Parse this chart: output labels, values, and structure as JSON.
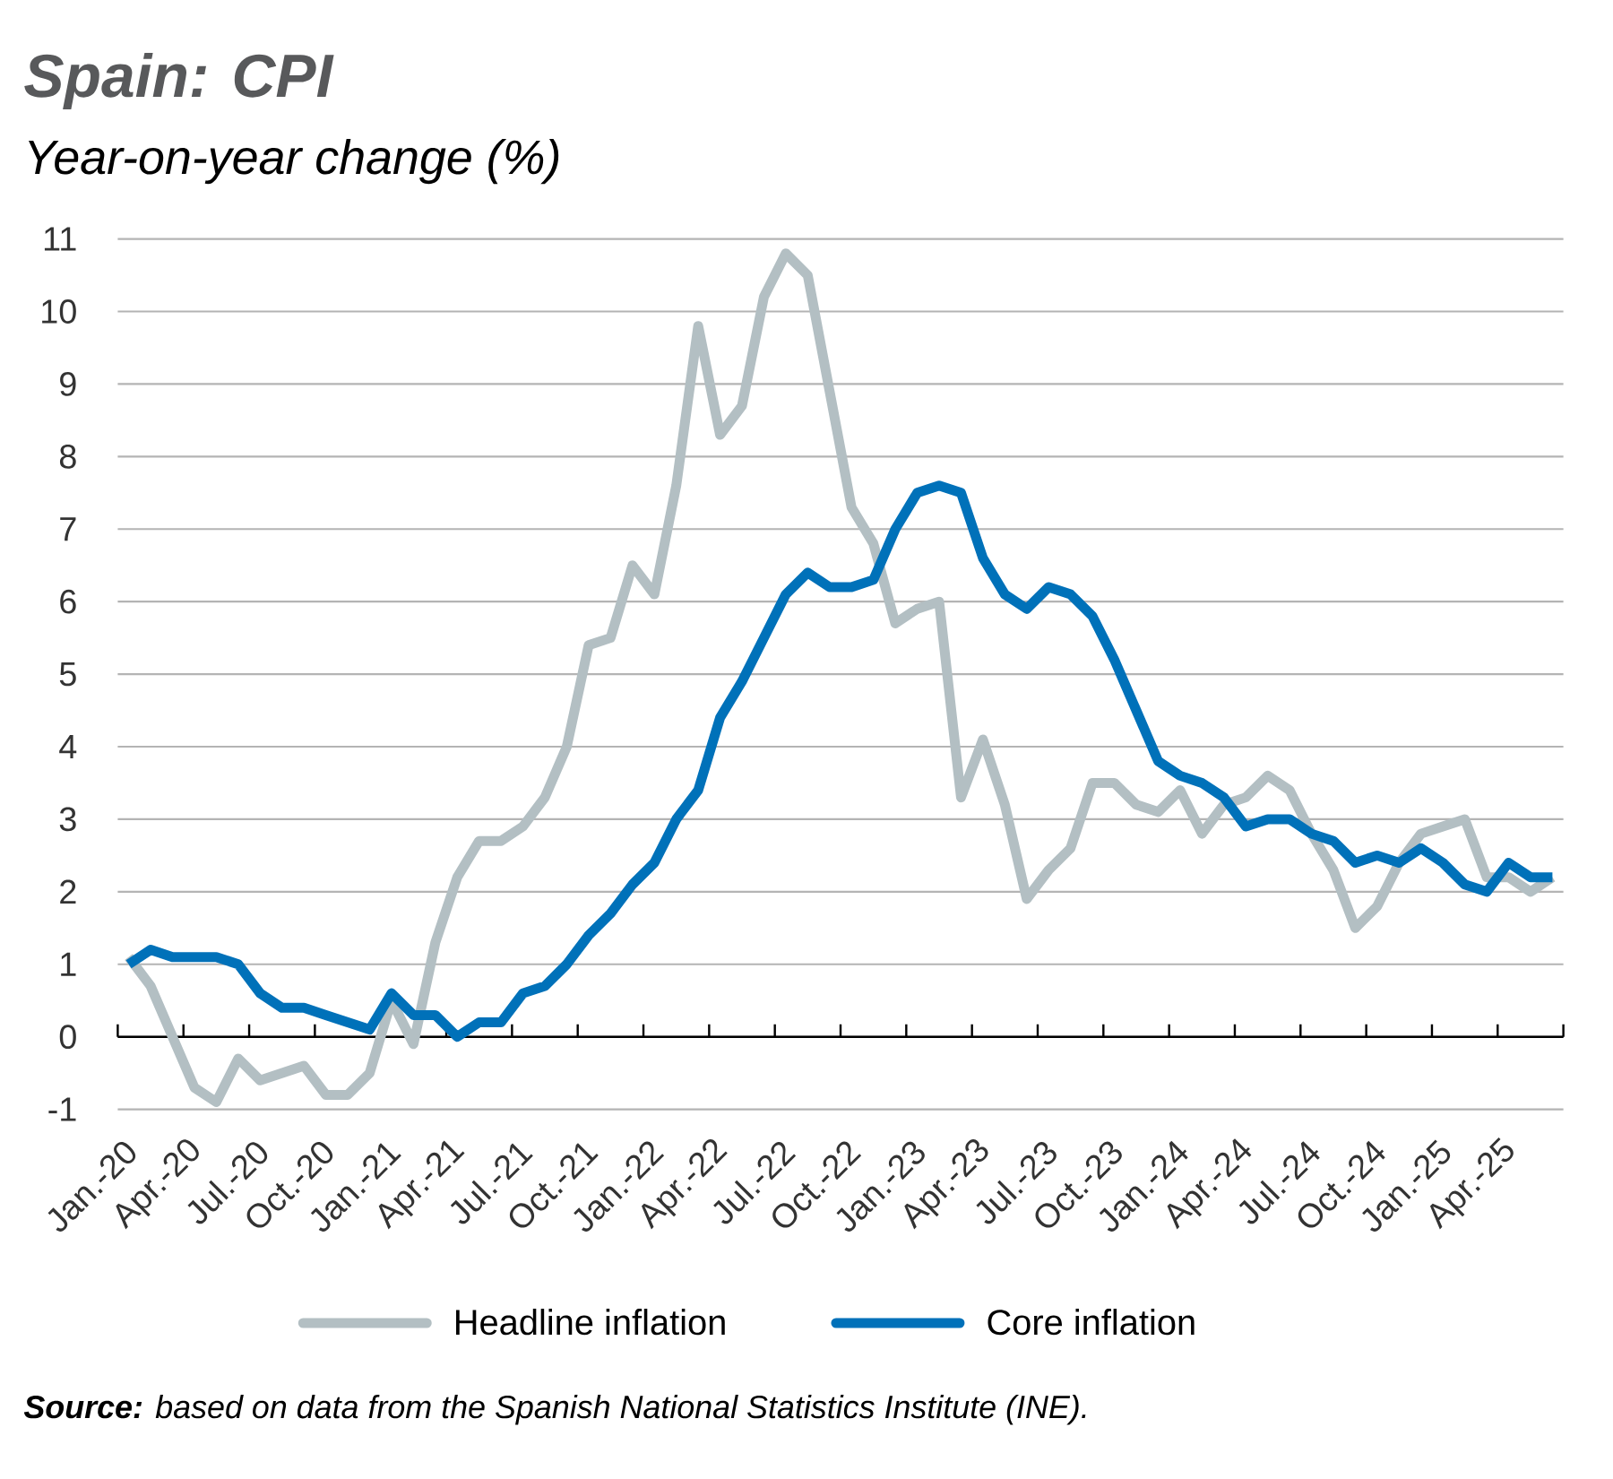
{
  "chart_data": {
    "type": "line",
    "title": "Spain: CPI",
    "subtitle": "Year-on-year change (%)",
    "categories": [
      "Jan.-20",
      null,
      null,
      "Apr.-20",
      null,
      null,
      "Jul.-20",
      null,
      null,
      "Oct.-20",
      null,
      null,
      "Jan.-21",
      null,
      null,
      "Apr.-21",
      null,
      null,
      "Jul.-21",
      null,
      null,
      "Oct.-21",
      null,
      null,
      "Jan.-22",
      null,
      null,
      "Apr.-22",
      null,
      null,
      "Jul.-22",
      null,
      null,
      "Oct.-22",
      null,
      null,
      "Jan.-23",
      null,
      null,
      "Apr.-23",
      null,
      null,
      "Jul.-23",
      null,
      null,
      "Oct.-23",
      null,
      null,
      "Jan.-24",
      null,
      null,
      "Apr.-24",
      null,
      null,
      "Jul.-24",
      null,
      null,
      "Oct.-24",
      null,
      null,
      "Jan.-25",
      null,
      null,
      "Apr.-25",
      null,
      null
    ],
    "series": [
      {
        "name": "Headline inflation",
        "color": "#b3bfc3",
        "values": [
          1.1,
          0.7,
          0.0,
          -0.7,
          -0.9,
          -0.3,
          -0.6,
          -0.5,
          -0.4,
          -0.8,
          -0.8,
          -0.5,
          0.5,
          -0.1,
          1.3,
          2.2,
          2.7,
          2.7,
          2.9,
          3.3,
          4.0,
          5.4,
          5.5,
          6.5,
          6.1,
          7.6,
          9.8,
          8.3,
          8.7,
          10.2,
          10.8,
          10.5,
          8.9,
          7.3,
          6.8,
          5.7,
          5.9,
          6.0,
          3.3,
          4.1,
          3.2,
          1.9,
          2.3,
          2.6,
          3.5,
          3.5,
          3.2,
          3.1,
          3.4,
          2.8,
          3.2,
          3.3,
          3.6,
          3.4,
          2.8,
          2.3,
          1.5,
          1.8,
          2.4,
          2.8,
          2.9,
          3.0,
          2.2,
          2.2,
          2.0,
          2.2
        ]
      },
      {
        "name": "Core inflation",
        "color": "#0071b9",
        "values": [
          1.0,
          1.2,
          1.1,
          1.1,
          1.1,
          1.0,
          0.6,
          0.4,
          0.4,
          0.3,
          0.2,
          0.1,
          0.6,
          0.3,
          0.3,
          0.0,
          0.2,
          0.2,
          0.6,
          0.7,
          1.0,
          1.4,
          1.7,
          2.1,
          2.4,
          3.0,
          3.4,
          4.4,
          4.9,
          5.5,
          6.1,
          6.4,
          6.2,
          6.2,
          6.3,
          7.0,
          7.5,
          7.6,
          7.5,
          6.6,
          6.1,
          5.9,
          6.2,
          6.1,
          5.8,
          5.2,
          4.5,
          3.8,
          3.6,
          3.5,
          3.3,
          2.9,
          3.0,
          3.0,
          2.8,
          2.7,
          2.4,
          2.5,
          2.4,
          2.6,
          2.4,
          2.1,
          2.0,
          2.4,
          2.2,
          2.2
        ]
      }
    ],
    "ylim": [
      -1,
      11
    ],
    "yticks": [
      -1,
      0,
      1,
      2,
      3,
      4,
      5,
      6,
      7,
      8,
      9,
      10,
      11
    ],
    "grid": "y",
    "legend": "bottom",
    "annotations": [
      "**Source:** based on data from the Spanish National Statistics Institute (INE)."
    ]
  }
}
